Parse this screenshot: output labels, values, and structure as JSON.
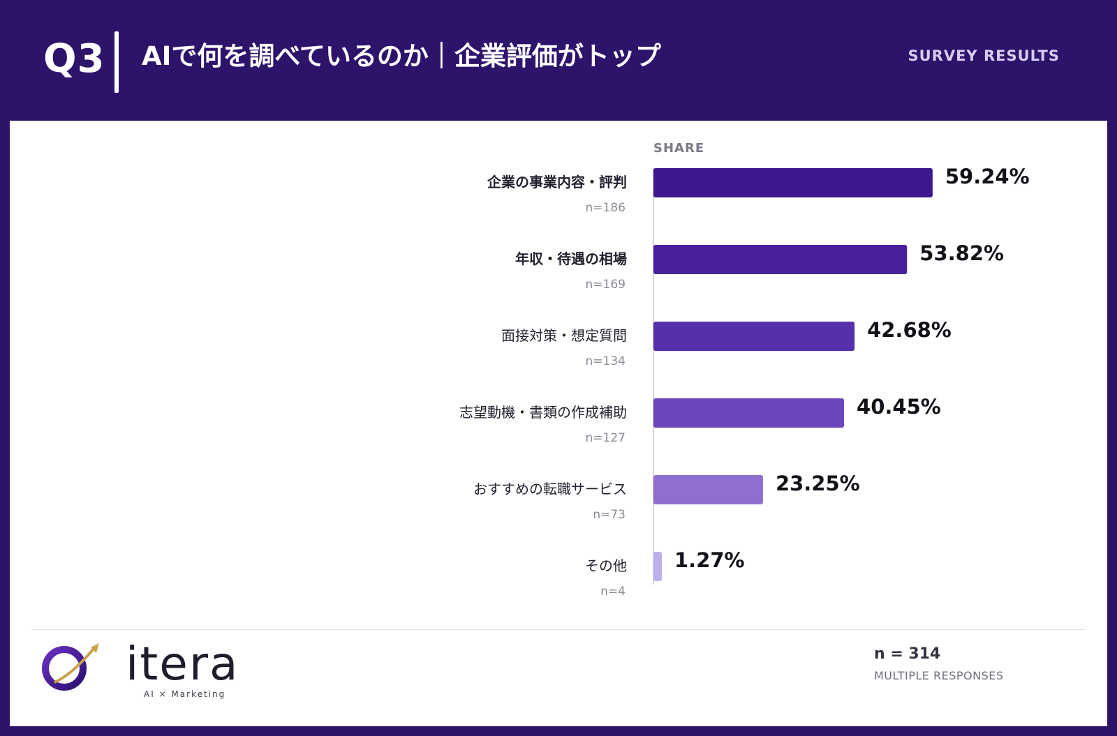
{
  "header": {
    "question_number": "Q3",
    "title": "AIで何を調べているのか｜企業評価がトップ",
    "tag": "SURVEY RESULTS"
  },
  "chart_data": {
    "type": "bar",
    "orientation": "horizontal",
    "column_label": "SHARE",
    "categories": [
      "企業の事業内容・評判",
      "年収・待遇の相場",
      "面接対策・想定質問",
      "志望動機・書類の作成補助",
      "おすすめの転職サービス",
      "その他"
    ],
    "counts": [
      "n=186",
      "n=169",
      "n=134",
      "n=127",
      "n=73",
      "n=4"
    ],
    "values": [
      59.24,
      53.82,
      42.68,
      40.45,
      23.25,
      1.27
    ],
    "value_labels": [
      "59.24%",
      "53.82%",
      "42.68%",
      "40.45%",
      "23.25%",
      "1.27%"
    ],
    "bold_categories": [
      true,
      true,
      false,
      false,
      false,
      false
    ],
    "bar_colors": [
      "#3d178f",
      "#48209e",
      "#5630ab",
      "#6a46bd",
      "#8e6fd0",
      "#bdb0ea"
    ],
    "unit": "%",
    "grid": false,
    "legend": "none"
  },
  "footer": {
    "brand": "itera",
    "brand_tagline": "AI × Marketing",
    "sample_size": "n = 314",
    "note": "MULTIPLE RESPONSES"
  }
}
